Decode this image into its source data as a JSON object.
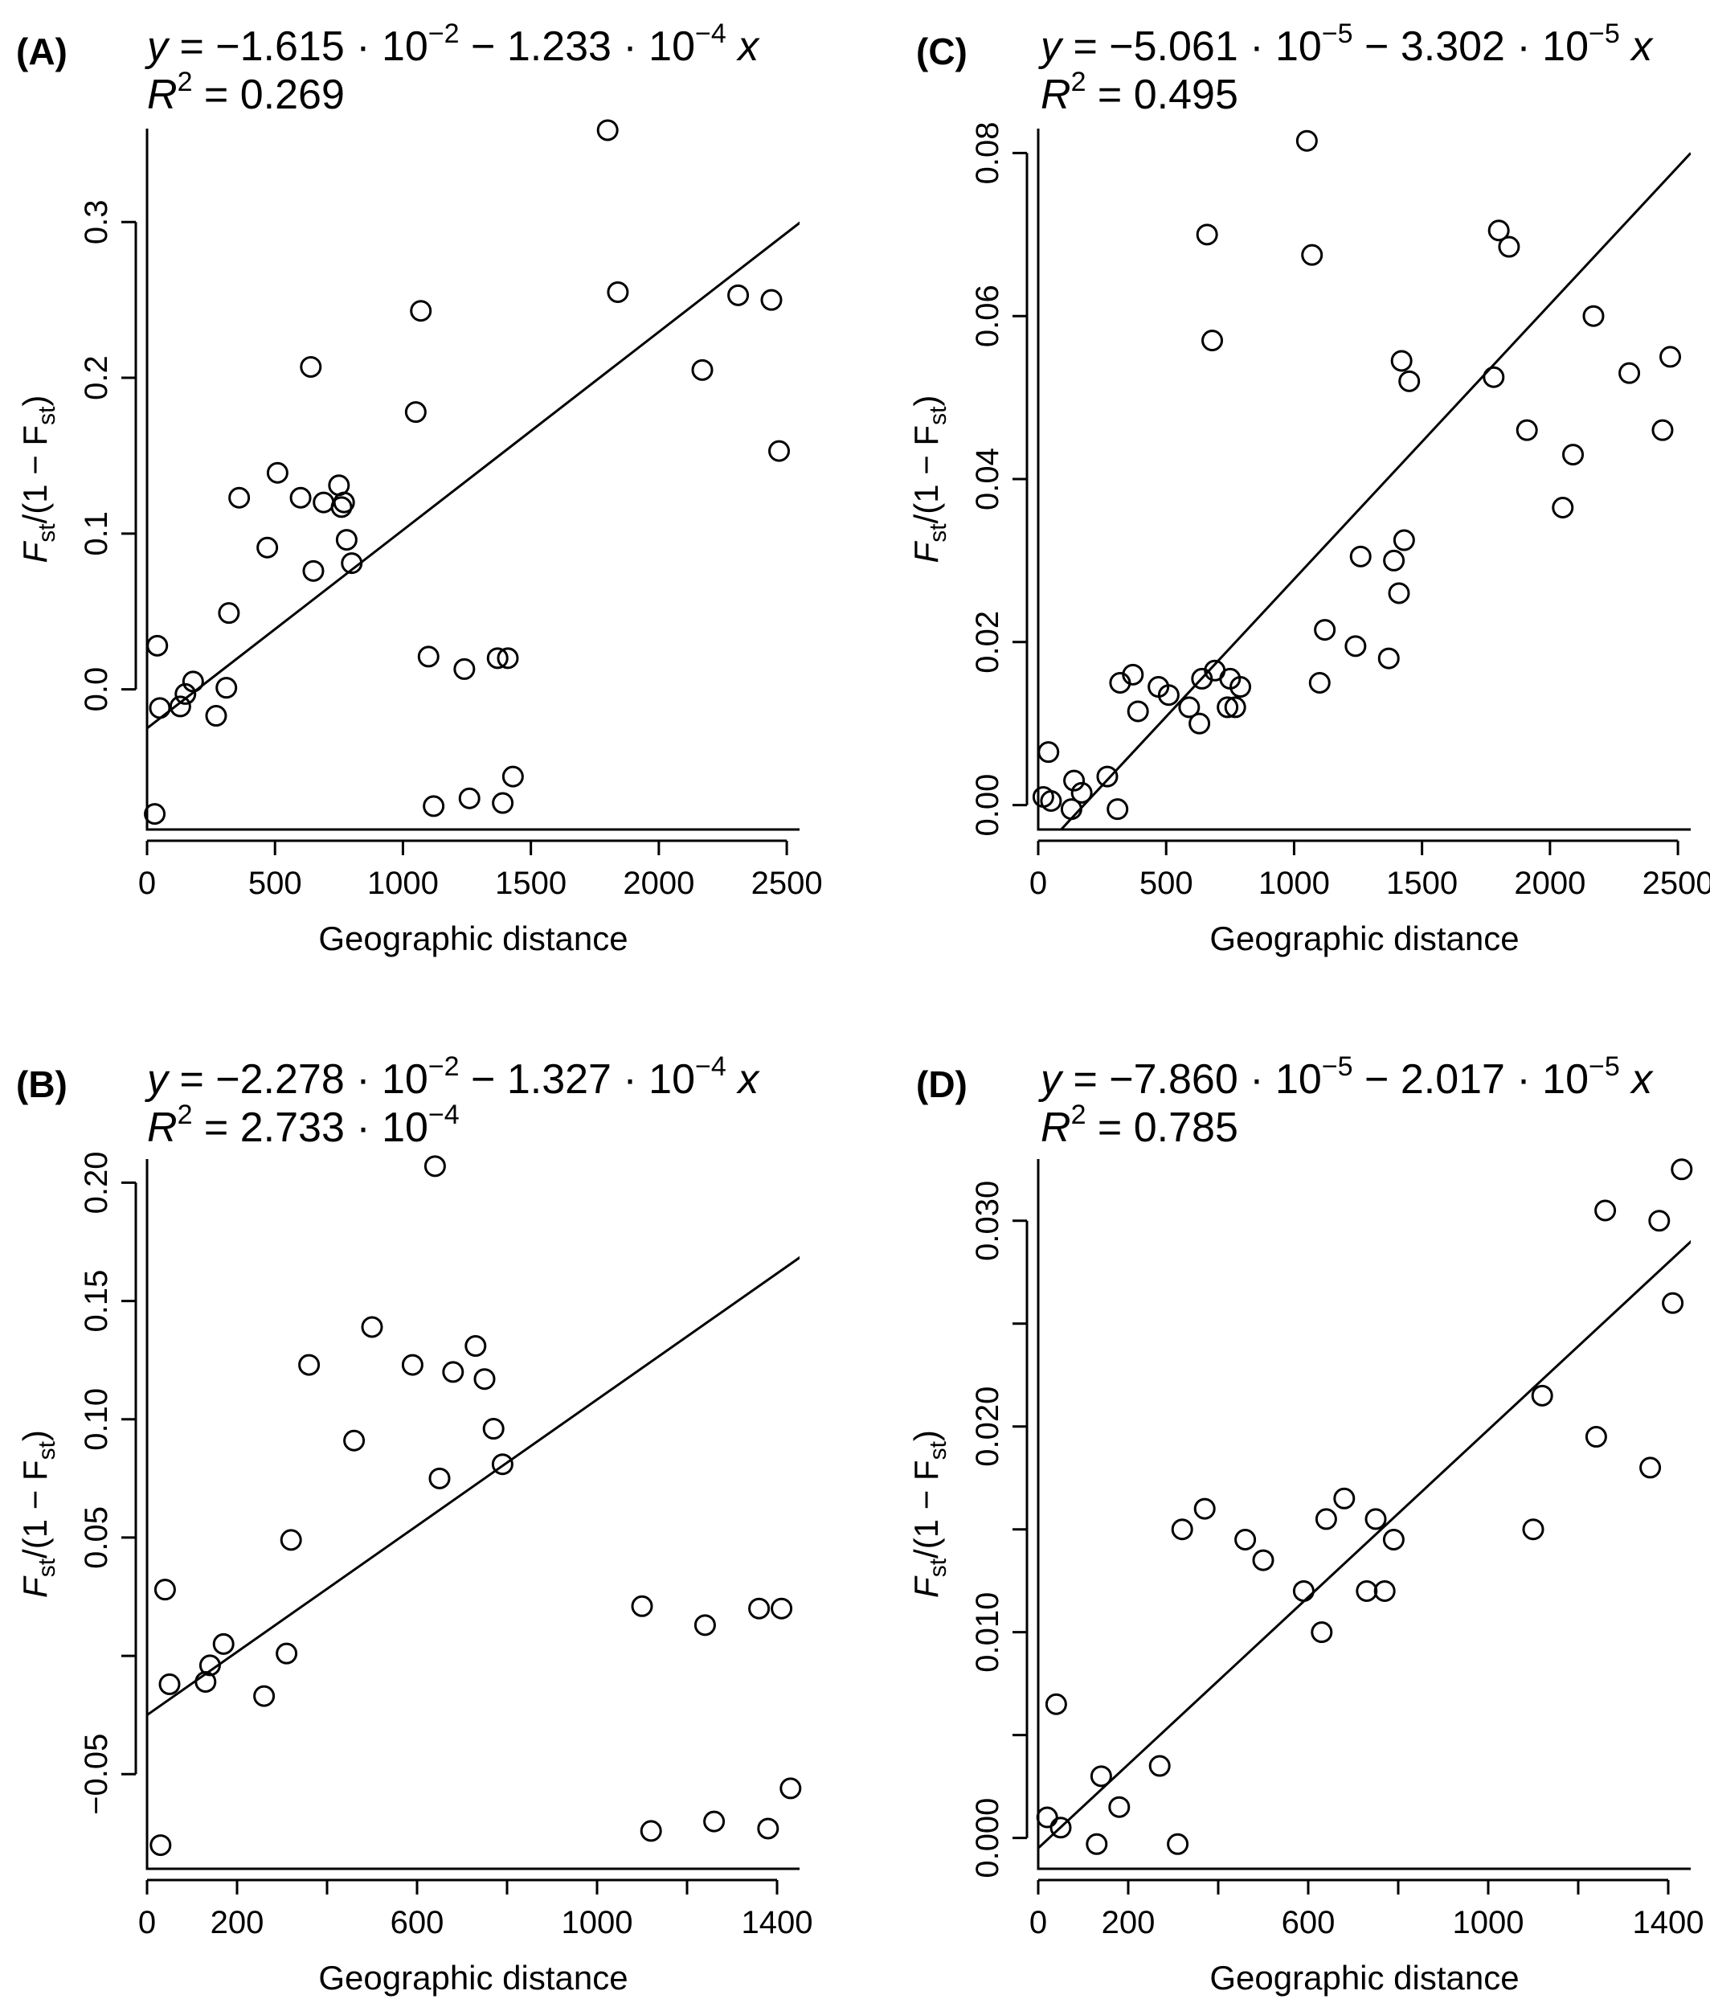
{
  "chart_data": [
    {
      "panel": "A",
      "type": "scatter",
      "equation": {
        "intercept": "−1.615",
        "intercept_exp": "−2",
        "slope": "1.233",
        "slope_exp": "−4",
        "r2": "0.269",
        "r2_exp": ""
      },
      "xlabel": "Geographic distance",
      "ylabel": {
        "main": "F",
        "sub": "st",
        "mid": "/(1 − F",
        "sub2": "st",
        "end": ")"
      },
      "xlim": [
        0,
        2550
      ],
      "ylim": [
        -0.09,
        0.36
      ],
      "xticks": [
        0,
        500,
        1000,
        1500,
        2000,
        2500
      ],
      "xtick_labels": [
        "0",
        "500",
        "1000",
        "1500",
        "2000",
        "2500"
      ],
      "yticks": [
        0.0,
        0.1,
        0.2,
        0.3
      ],
      "ytick_labels": [
        "0.0",
        "0.1",
        "0.2",
        "0.3"
      ],
      "fit": {
        "x": [
          0,
          2570
        ],
        "y": [
          -0.025,
          0.302
        ]
      },
      "x": [
        30,
        40,
        50,
        130,
        150,
        180,
        270,
        310,
        320,
        360,
        470,
        510,
        600,
        640,
        650,
        690,
        750,
        760,
        770,
        780,
        800,
        1050,
        1070,
        1100,
        1120,
        1240,
        1260,
        1370,
        1390,
        1410,
        1430,
        1800,
        1840,
        2170,
        2310,
        2440,
        2470
      ],
      "y": [
        -0.08,
        0.028,
        -0.012,
        -0.011,
        -0.003,
        0.005,
        -0.017,
        0.001,
        0.049,
        0.123,
        0.091,
        0.139,
        0.123,
        0.207,
        0.076,
        0.12,
        0.131,
        0.117,
        0.12,
        0.096,
        0.081,
        0.178,
        0.243,
        0.021,
        -0.075,
        0.013,
        -0.07,
        0.02,
        -0.073,
        0.02,
        -0.056,
        0.359,
        0.255,
        0.205,
        0.253,
        0.25,
        0.153
      ]
    },
    {
      "panel": "B",
      "type": "scatter",
      "equation": {
        "intercept": "−2.278",
        "intercept_exp": "−2",
        "slope": "1.327",
        "slope_exp": "−4",
        "r2": "2.733",
        "r2_exp": "−4"
      },
      "xlabel": "Geographic distance",
      "ylabel": {
        "main": "F",
        "sub": "st",
        "mid": "/(1 − F",
        "sub2": "st",
        "end": ")"
      },
      "xlim": [
        0,
        1450
      ],
      "ylim": [
        -0.09,
        0.21
      ],
      "xticks": [
        0,
        200,
        400,
        600,
        800,
        1000,
        1200,
        1400
      ],
      "xtick_labels": [
        "0",
        "200",
        "",
        "600",
        "",
        "1000",
        "",
        "1400"
      ],
      "yticks": [
        -0.05,
        0.0,
        0.05,
        0.1,
        0.15,
        0.2
      ],
      "ytick_labels": [
        "−0.05",
        "",
        "0.05",
        "0.10",
        "0.15",
        "0.20"
      ],
      "fit": {
        "x": [
          0,
          1500
        ],
        "y": [
          -0.025,
          0.175
        ]
      },
      "x": [
        30,
        40,
        50,
        130,
        140,
        170,
        260,
        310,
        320,
        360,
        460,
        500,
        590,
        640,
        650,
        680,
        730,
        750,
        770,
        790,
        1100,
        1120,
        1240,
        1260,
        1360,
        1380,
        1410,
        1430
      ],
      "y": [
        -0.08,
        0.028,
        -0.012,
        -0.011,
        -0.004,
        0.005,
        -0.017,
        0.001,
        0.049,
        0.123,
        0.091,
        0.139,
        0.123,
        0.207,
        0.075,
        0.12,
        0.131,
        0.117,
        0.096,
        0.081,
        0.021,
        -0.074,
        0.013,
        -0.07,
        0.02,
        -0.073,
        0.02,
        -0.056
      ]
    },
    {
      "panel": "C",
      "type": "scatter",
      "equation": {
        "intercept": "−5.061",
        "intercept_exp": "−5",
        "slope": "3.302",
        "slope_exp": "−5",
        "r2": "0.495",
        "r2_exp": ""
      },
      "xlabel": "Geographic distance",
      "ylabel": {
        "main": "F",
        "sub": "st",
        "mid": "/(1 − F",
        "sub2": "st",
        "end": ")"
      },
      "xlim": [
        0,
        2550
      ],
      "ylim": [
        -0.003,
        0.083
      ],
      "xticks": [
        0,
        500,
        1000,
        1500,
        2000,
        2500
      ],
      "xtick_labels": [
        "0",
        "500",
        "1000",
        "1500",
        "2000",
        "2500"
      ],
      "yticks": [
        0.0,
        0.02,
        0.04,
        0.06,
        0.08
      ],
      "ytick_labels": [
        "0.00",
        "0.02",
        "0.04",
        "0.06",
        "0.08"
      ],
      "fit": {
        "x": [
          60,
          2550
        ],
        "y": [
          -0.004,
          0.08
        ]
      },
      "x": [
        20,
        40,
        50,
        130,
        140,
        170,
        270,
        310,
        320,
        370,
        390,
        470,
        510,
        590,
        630,
        640,
        660,
        680,
        690,
        740,
        750,
        770,
        790,
        1050,
        1070,
        1100,
        1120,
        1240,
        1260,
        1370,
        1390,
        1410,
        1420,
        1430,
        1450,
        1780,
        1800,
        1840,
        1910,
        2050,
        2090,
        2170,
        2310,
        2440,
        2470
      ],
      "y": [
        0.001,
        0.0065,
        0.0005,
        -0.0005,
        0.003,
        0.0015,
        0.0035,
        -0.0005,
        0.015,
        0.016,
        0.0115,
        0.0145,
        0.0135,
        0.012,
        0.01,
        0.0155,
        0.07,
        0.057,
        0.0165,
        0.012,
        0.0155,
        0.012,
        0.0145,
        0.0815,
        0.0675,
        0.015,
        0.0215,
        0.0195,
        0.0305,
        0.018,
        0.03,
        0.026,
        0.0545,
        0.0325,
        0.052,
        0.0525,
        0.0705,
        0.0685,
        0.046,
        0.0365,
        0.043,
        0.06,
        0.053,
        0.046,
        0.055
      ]
    },
    {
      "panel": "D",
      "type": "scatter",
      "equation": {
        "intercept": "−7.860",
        "intercept_exp": "−5",
        "slope": "2.017",
        "slope_exp": "−5",
        "r2": "0.785",
        "r2_exp": ""
      },
      "xlabel": "Geographic distance",
      "ylabel": {
        "main": "F",
        "sub": "st",
        "mid": "/(1 − F",
        "sub2": "st",
        "end": ")"
      },
      "xlim": [
        0,
        1450
      ],
      "ylim": [
        -0.0015,
        0.033
      ],
      "xticks": [
        0,
        200,
        400,
        600,
        800,
        1000,
        1200,
        1400
      ],
      "xtick_labels": [
        "0",
        "200",
        "",
        "600",
        "",
        "1000",
        "",
        "1400"
      ],
      "yticks": [
        0.0,
        0.005,
        0.01,
        0.015,
        0.02,
        0.025,
        0.03
      ],
      "ytick_labels": [
        "0.000",
        "",
        "0.010",
        "",
        "0.020",
        "",
        "0.030"
      ],
      "fit": {
        "x": [
          -10,
          1500
        ],
        "y": [
          -0.0007,
          0.03
        ]
      },
      "x": [
        20,
        40,
        50,
        130,
        140,
        180,
        270,
        310,
        320,
        370,
        460,
        500,
        590,
        630,
        640,
        680,
        730,
        750,
        770,
        790,
        1100,
        1120,
        1240,
        1260,
        1360,
        1380,
        1410,
        1430
      ],
      "y": [
        0.001,
        0.0065,
        0.0005,
        -0.0003,
        0.003,
        0.0015,
        0.0035,
        -0.0003,
        0.015,
        0.016,
        0.0145,
        0.0135,
        0.012,
        0.01,
        0.0155,
        0.0165,
        0.012,
        0.0155,
        0.012,
        0.0145,
        0.015,
        0.0215,
        0.0195,
        0.0305,
        0.018,
        0.03,
        0.026,
        0.0325
      ]
    }
  ]
}
